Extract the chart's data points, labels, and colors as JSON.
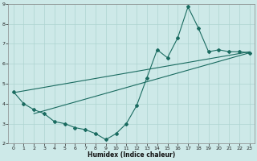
{
  "xlabel": "Humidex (Indice chaleur)",
  "xlim": [
    -0.5,
    23.5
  ],
  "ylim": [
    2,
    9
  ],
  "xticks": [
    0,
    1,
    2,
    3,
    4,
    5,
    6,
    7,
    8,
    9,
    10,
    11,
    12,
    13,
    14,
    15,
    16,
    17,
    18,
    19,
    20,
    21,
    22,
    23
  ],
  "yticks": [
    2,
    3,
    4,
    5,
    6,
    7,
    8,
    9
  ],
  "background_color": "#cde9e8",
  "grid_color": "#aed4d1",
  "line_color": "#1a6b60",
  "zigzag_x": [
    0,
    1,
    2,
    3,
    4,
    5,
    6,
    7,
    8,
    9,
    10,
    11,
    12,
    13,
    14,
    15,
    16,
    17,
    18,
    19,
    20,
    21,
    22,
    23
  ],
  "zigzag_y": [
    4.6,
    4.0,
    3.7,
    3.5,
    3.1,
    3.0,
    2.8,
    2.7,
    2.5,
    2.2,
    2.5,
    3.0,
    3.9,
    5.3,
    6.7,
    6.3,
    7.3,
    8.85,
    7.8,
    6.6,
    6.7,
    6.6,
    6.6,
    6.55
  ],
  "trend1_x": [
    0,
    23
  ],
  "trend1_y": [
    4.55,
    6.6
  ],
  "trend2_x": [
    2,
    23
  ],
  "trend2_y": [
    3.5,
    6.55
  ]
}
